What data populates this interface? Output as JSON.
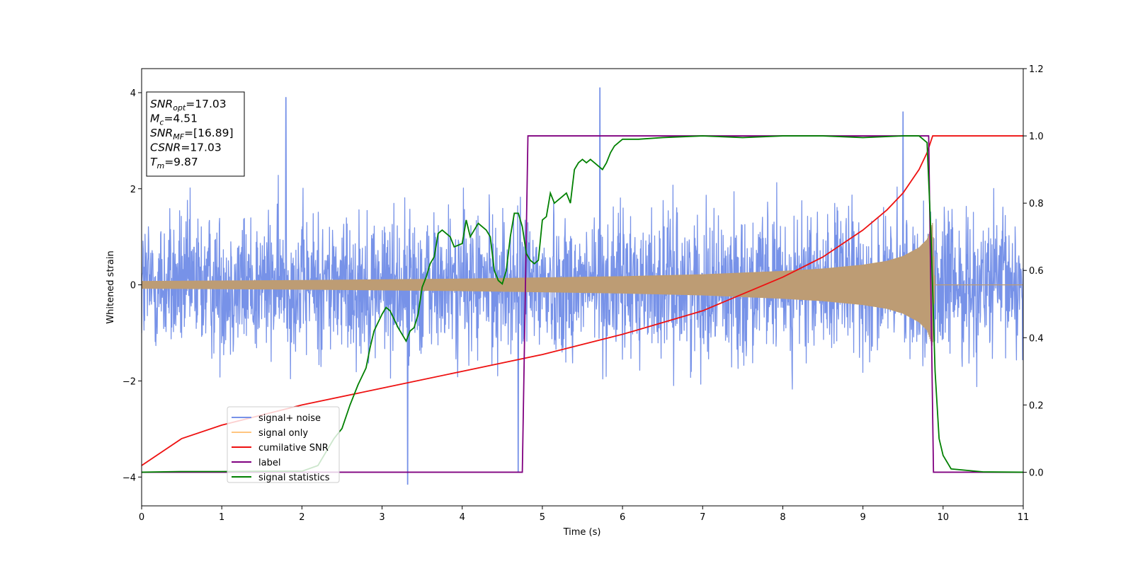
{
  "chart_data": {
    "type": "line",
    "xlabel": "Time (s)",
    "ylabel": "Whitened strain",
    "xlim": [
      0,
      11
    ],
    "ylim": [
      -4.6,
      4.5
    ],
    "y2lim": [
      -0.1,
      1.2
    ],
    "x_ticks": [
      "0",
      "1",
      "2",
      "3",
      "4",
      "5",
      "6",
      "7",
      "8",
      "9",
      "10",
      "11"
    ],
    "y_ticks": [
      "4",
      "2",
      "0",
      "−2",
      "−4"
    ],
    "y2_ticks": [
      "1.2",
      "1.0",
      "0.8",
      "0.6",
      "0.4",
      "0.2",
      "0.0"
    ],
    "grid": false,
    "legend_position": "lower-left",
    "annotation": {
      "lines": [
        {
          "sym": "SNR",
          "sub": "opt",
          "value": "=17.03"
        },
        {
          "sym": "M",
          "sub": "c",
          "value": "=4.51"
        },
        {
          "sym": "SNR",
          "sub": "MF",
          "value": "=[16.89]"
        },
        {
          "sym": "CSNR",
          "sub": "",
          "value": "=17.03"
        },
        {
          "sym": "T",
          "sub": "m",
          "value": "=9.87"
        }
      ]
    },
    "series": [
      {
        "name": "signal+ noise",
        "axis": "left",
        "color": "#7792e8",
        "noise_amplitude": 1.0,
        "extremes": [
          [
            1.8,
            3.9
          ],
          [
            5.72,
            4.1
          ],
          [
            3.32,
            -4.15
          ],
          [
            4.7,
            -3.9
          ],
          [
            9.5,
            3.6
          ]
        ]
      },
      {
        "name": "signal only",
        "axis": "left",
        "color": "#bd9c74",
        "envelope": [
          [
            0,
            0.08
          ],
          [
            2,
            0.1
          ],
          [
            4,
            0.13
          ],
          [
            6,
            0.18
          ],
          [
            7,
            0.22
          ],
          [
            8,
            0.29
          ],
          [
            8.5,
            0.34
          ],
          [
            9,
            0.42
          ],
          [
            9.3,
            0.5
          ],
          [
            9.5,
            0.6
          ],
          [
            9.7,
            0.78
          ],
          [
            9.8,
            0.95
          ],
          [
            9.87,
            1.3
          ],
          [
            9.9,
            0.0
          ],
          [
            11,
            0.0
          ]
        ]
      },
      {
        "name": "cumilative SNR",
        "axis": "right",
        "color": "#ee1111",
        "x": [
          0,
          0.5,
          1,
          2,
          3,
          4,
          5,
          6,
          7,
          8,
          8.5,
          9,
          9.3,
          9.5,
          9.7,
          9.8,
          9.87,
          11
        ],
        "y": [
          0.02,
          0.1,
          0.14,
          0.2,
          0.25,
          0.3,
          0.35,
          0.41,
          0.48,
          0.58,
          0.64,
          0.72,
          0.78,
          0.83,
          0.9,
          0.95,
          1.0,
          1.0
        ]
      },
      {
        "name": "label",
        "axis": "right",
        "color": "#800080",
        "x": [
          0,
          4.75,
          4.82,
          9.82,
          9.88,
          11
        ],
        "y": [
          0,
          0,
          1,
          1,
          0,
          0
        ]
      },
      {
        "name": "signal statistics",
        "axis": "right",
        "color": "#008000",
        "x": [
          0,
          0.5,
          1,
          1.5,
          2,
          2.2,
          2.3,
          2.4,
          2.5,
          2.6,
          2.7,
          2.8,
          2.85,
          2.9,
          3,
          3.05,
          3.1,
          3.2,
          3.25,
          3.3,
          3.35,
          3.4,
          3.45,
          3.5,
          3.55,
          3.6,
          3.65,
          3.7,
          3.75,
          3.8,
          3.85,
          3.9,
          4,
          4.05,
          4.1,
          4.15,
          4.2,
          4.25,
          4.3,
          4.35,
          4.4,
          4.45,
          4.5,
          4.55,
          4.6,
          4.65,
          4.7,
          4.75,
          4.8,
          4.85,
          4.9,
          4.95,
          5,
          5.05,
          5.1,
          5.15,
          5.2,
          5.25,
          5.3,
          5.35,
          5.4,
          5.45,
          5.5,
          5.55,
          5.6,
          5.65,
          5.7,
          5.75,
          5.8,
          5.85,
          5.9,
          5.95,
          6,
          6.2,
          6.5,
          7,
          7.5,
          8,
          8.5,
          9,
          9.5,
          9.6,
          9.7,
          9.75,
          9.8,
          9.85,
          9.9,
          9.95,
          10,
          10.1,
          10.5,
          11
        ],
        "y": [
          0,
          0.002,
          0.002,
          0.003,
          0.003,
          0.02,
          0.06,
          0.1,
          0.13,
          0.2,
          0.26,
          0.31,
          0.37,
          0.42,
          0.47,
          0.49,
          0.48,
          0.43,
          0.41,
          0.39,
          0.42,
          0.43,
          0.47,
          0.55,
          0.58,
          0.62,
          0.64,
          0.71,
          0.72,
          0.71,
          0.7,
          0.67,
          0.68,
          0.75,
          0.7,
          0.72,
          0.74,
          0.73,
          0.72,
          0.7,
          0.6,
          0.57,
          0.56,
          0.6,
          0.7,
          0.77,
          0.77,
          0.73,
          0.65,
          0.63,
          0.62,
          0.63,
          0.75,
          0.76,
          0.83,
          0.8,
          0.81,
          0.82,
          0.83,
          0.8,
          0.9,
          0.92,
          0.93,
          0.92,
          0.93,
          0.92,
          0.91,
          0.9,
          0.92,
          0.95,
          0.97,
          0.98,
          0.99,
          0.99,
          0.995,
          1.0,
          0.995,
          1.0,
          1.0,
          0.995,
          1.0,
          1.0,
          1.0,
          0.99,
          0.98,
          0.7,
          0.3,
          0.1,
          0.05,
          0.01,
          0.001,
          0.0
        ]
      }
    ]
  }
}
